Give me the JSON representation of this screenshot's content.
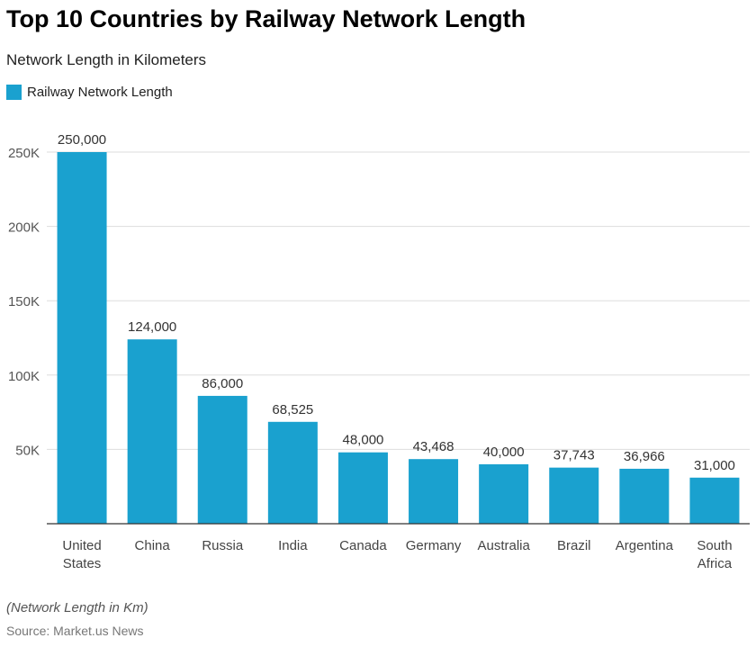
{
  "title": "Top 10 Countries by Railway Network Length",
  "subtitle": "Network Length in Kilometers",
  "note": "(Network Length in Km)",
  "source": "Source: Market.us News",
  "chart_data": {
    "type": "bar",
    "title": "Top 10 Countries by Railway Network Length",
    "categories": [
      [
        "United",
        "States"
      ],
      [
        "China"
      ],
      [
        "Russia"
      ],
      [
        "India"
      ],
      [
        "Canada"
      ],
      [
        "Germany"
      ],
      [
        "Australia"
      ],
      [
        "Brazil"
      ],
      [
        "Argentina"
      ],
      [
        "South",
        "Africa"
      ]
    ],
    "series": [
      {
        "name": "Railway Network Length",
        "color": "#1aa1cf",
        "values": [
          250000,
          124000,
          86000,
          68525,
          48000,
          43468,
          40000,
          37743,
          36966,
          31000
        ],
        "labels": [
          "250,000",
          "124,000",
          "86,000",
          "68,525",
          "48,000",
          "43,468",
          "40,000",
          "37,743",
          "36,966",
          "31,000"
        ]
      }
    ],
    "yticks": [
      {
        "value": 50000,
        "label": "50K"
      },
      {
        "value": 100000,
        "label": "100K"
      },
      {
        "value": 150000,
        "label": "150K"
      },
      {
        "value": 200000,
        "label": "200K"
      },
      {
        "value": 250000,
        "label": "250K"
      }
    ],
    "ylim": [
      0,
      250000
    ],
    "grid": true,
    "legend": "top-left"
  }
}
